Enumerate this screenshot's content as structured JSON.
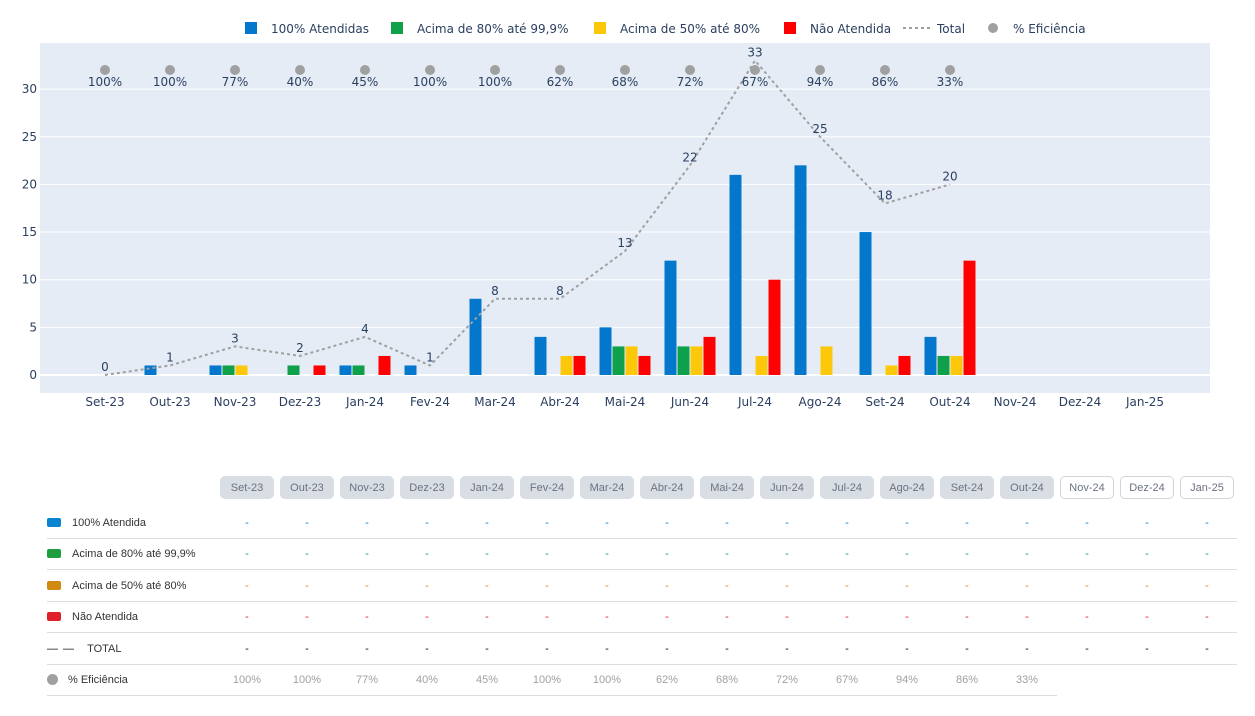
{
  "legend": [
    {
      "label": "100% Atendidas",
      "color": "#0277cc"
    },
    {
      "label": "Acima de 80% até 99,9%",
      "color": "#0ea04a"
    },
    {
      "label": "Acima de 50% até 80%",
      "color": "#fdc70a"
    },
    {
      "label": "Não Atendida",
      "color": "#ff0000"
    },
    {
      "label": "Total",
      "color": "#a0a0a0"
    },
    {
      "label": "% Eficiência",
      "color": "#a0a0a0"
    }
  ],
  "chart_data": {
    "type": "bar",
    "categories": [
      "Set-23",
      "Out-23",
      "Nov-23",
      "Dez-23",
      "Jan-24",
      "Fev-24",
      "Mar-24",
      "Abr-24",
      "Mai-24",
      "Jun-24",
      "Jul-24",
      "Ago-24",
      "Set-24",
      "Out-24",
      "Nov-24",
      "Dez-24",
      "Jan-25"
    ],
    "series": [
      {
        "name": "100% Atendidas",
        "values": [
          0,
          1,
          1,
          0,
          1,
          1,
          8,
          4,
          5,
          12,
          21,
          22,
          15,
          4,
          null,
          null,
          null
        ]
      },
      {
        "name": "Acima de 80% até 99,9%",
        "values": [
          0,
          0,
          1,
          1,
          1,
          0,
          0,
          0,
          3,
          3,
          0,
          0,
          0,
          2,
          null,
          null,
          null
        ]
      },
      {
        "name": "Acima de 50% até 80%",
        "values": [
          0,
          0,
          1,
          0,
          0,
          0,
          0,
          2,
          3,
          3,
          2,
          3,
          1,
          2,
          null,
          null,
          null
        ]
      },
      {
        "name": "Não Atendida",
        "values": [
          0,
          0,
          0,
          1,
          2,
          0,
          0,
          2,
          2,
          4,
          10,
          0,
          2,
          12,
          null,
          null,
          null
        ]
      }
    ],
    "total": [
      0,
      1,
      3,
      2,
      4,
      1,
      8,
      8,
      13,
      22,
      33,
      25,
      18,
      20,
      null,
      null,
      null
    ],
    "efficiency": [
      "100%",
      "100%",
      "77%",
      "40%",
      "45%",
      "100%",
      "100%",
      "62%",
      "68%",
      "72%",
      "67%",
      "94%",
      "86%",
      "33%",
      null,
      null,
      null
    ],
    "yticks": [
      "0",
      "5",
      "10",
      "15",
      "20",
      "25",
      "30"
    ],
    "ylim": [
      -2,
      34.7
    ],
    "legend_position": "top"
  },
  "table": {
    "rows": [
      {
        "label": "100% Atendida",
        "color": "#0a84d0",
        "value_color": "#0a84d0",
        "cells": "-"
      },
      {
        "label": "Acima de 80% até 99,9%",
        "color": "#1f9d3f",
        "value_color": "#1f9d3f",
        "cells": "-"
      },
      {
        "label": "Acima de 50% até 80%",
        "color": "#d08a10",
        "value_color": "#d08a10",
        "cells": "-"
      },
      {
        "label": "Não Atendida",
        "color": "#e0202a",
        "value_color": "#e0202a",
        "cells": "-"
      },
      {
        "label": "TOTAL",
        "color": "#111",
        "value_color": "#111",
        "cells": "-"
      },
      {
        "label": "% Eficiência",
        "color": "#a0a0a0",
        "value_color": "#a0a0a0",
        "cells": "eff"
      }
    ],
    "filled_months": 14
  }
}
